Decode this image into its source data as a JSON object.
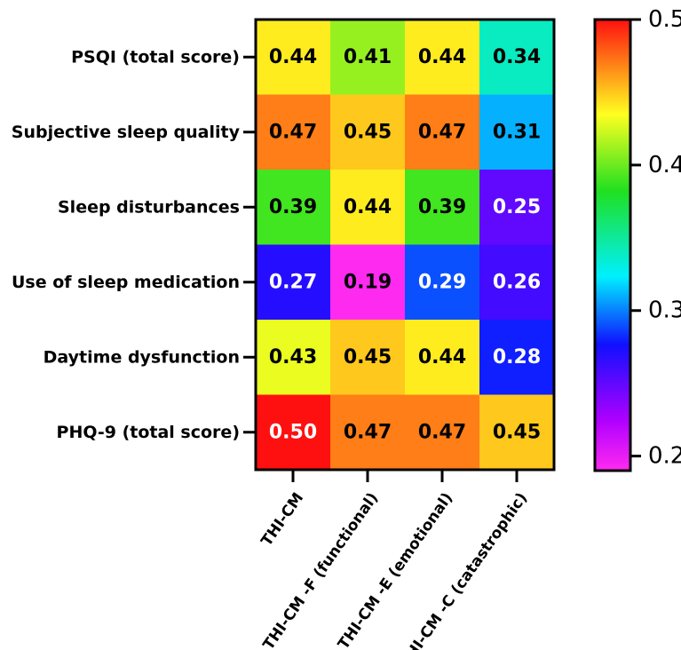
{
  "chart_data": {
    "type": "heatmap",
    "rows": [
      "PSQI (total score)",
      "Subjective sleep quality",
      "Sleep disturbances",
      "Use of sleep medication",
      "Daytime dysfunction",
      "PHQ-9 (total score)"
    ],
    "columns": [
      "THI-CM",
      "THI-CM -F (functional)",
      "THI-CM -E (emotional)",
      "THI-CM -C (catastrophic)"
    ],
    "values": [
      [
        0.44,
        0.41,
        0.44,
        0.34
      ],
      [
        0.47,
        0.45,
        0.47,
        0.31
      ],
      [
        0.39,
        0.44,
        0.39,
        0.25
      ],
      [
        0.27,
        0.19,
        0.29,
        0.26
      ],
      [
        0.43,
        0.45,
        0.44,
        0.28
      ],
      [
        0.5,
        0.47,
        0.47,
        0.45
      ]
    ],
    "value_labels": [
      [
        "0.44",
        "0.41",
        "0.44",
        "0.34"
      ],
      [
        "0.47",
        "0.45",
        "0.47",
        "0.31"
      ],
      [
        "0.39",
        "0.44",
        "0.39",
        "0.25"
      ],
      [
        "0.27",
        "0.19",
        "0.29",
        "0.26"
      ],
      [
        "0.43",
        "0.45",
        "0.44",
        "0.28"
      ],
      [
        "0.50",
        "0.47",
        "0.47",
        "0.45"
      ]
    ],
    "colorbar": {
      "range": [
        0.19,
        0.5
      ],
      "ticks": [
        0.2,
        0.3,
        0.4,
        0.5
      ],
      "tick_labels": [
        "0.2",
        "0.3",
        "0.4",
        "0.5"
      ],
      "colorscale": "rainbow (magenta-blue-cyan-green-yellow-red)"
    }
  }
}
